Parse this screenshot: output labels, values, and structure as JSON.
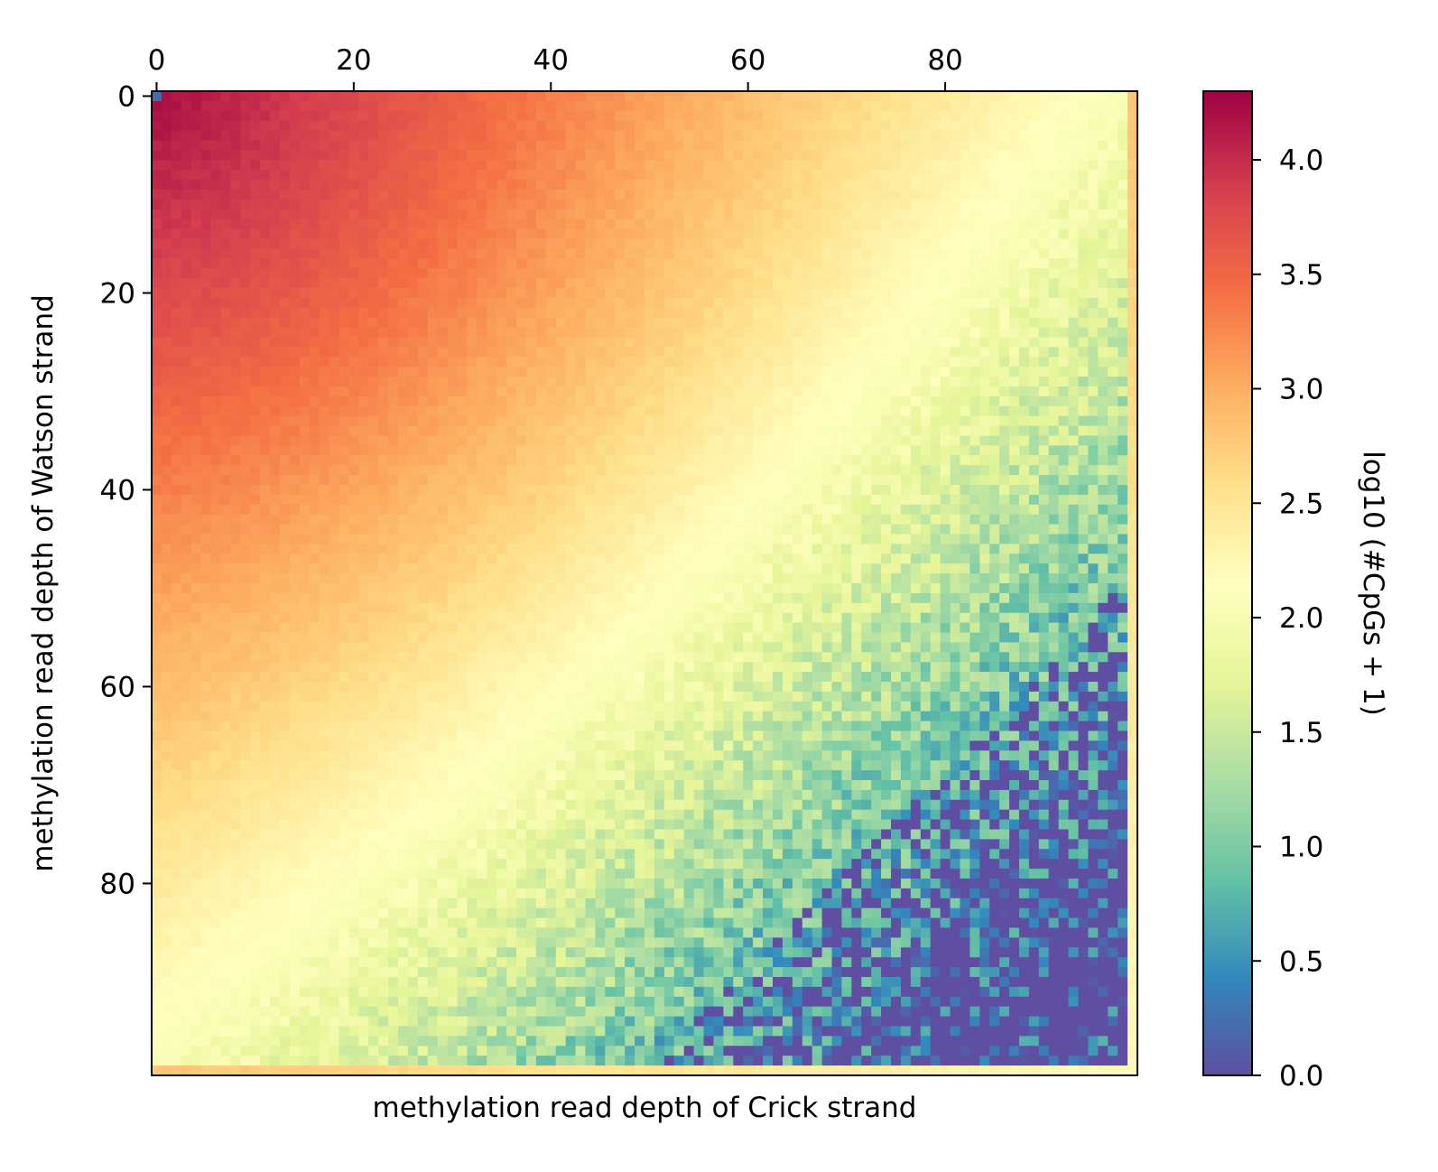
{
  "chart_data": {
    "type": "heatmap",
    "xlabel": "methylation read depth of Crick strand",
    "ylabel": "methylation read depth of Watson strand",
    "x_ticks": [
      0,
      20,
      40,
      60,
      80
    ],
    "y_ticks": [
      0,
      20,
      40,
      60,
      80
    ],
    "x_range": [
      0,
      99
    ],
    "y_range": [
      0,
      99
    ],
    "xaxis_position": "top",
    "grid": false,
    "colormap": "Spectral_r",
    "colormap_stops": [
      "#5e4fa2",
      "#3288bd",
      "#66c2a5",
      "#abdda4",
      "#e6f598",
      "#ffffbf",
      "#fee08b",
      "#fdae61",
      "#f46d43",
      "#d53e4f",
      "#9e0142"
    ],
    "colorbar": {
      "label": "log10 (#CpGs + 1)",
      "range": [
        0,
        4.3
      ],
      "ticks": [
        "0.0",
        "0.5",
        "1.0",
        "1.5",
        "2.0",
        "2.5",
        "3.0",
        "3.5",
        "4.0"
      ]
    },
    "description_of_values": {
      "watson_0_crick_0": 0.2,
      "watson_1_crick_1": 4.2,
      "edge_row_99": 2.8,
      "edge_col_99": 2.8,
      "bottom_right_region": 0.0
    }
  }
}
